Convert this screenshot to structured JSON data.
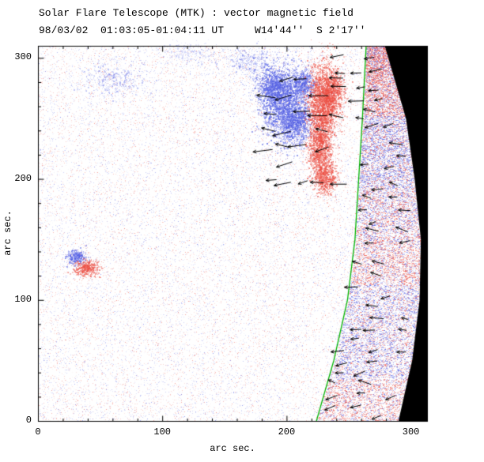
{
  "title": {
    "line1": "Solar Flare Telescope (MTK) : vector magnetic field",
    "line2": "98/03/02  01:03:05-01:04:11 UT     W14'44''  S 2'17''"
  },
  "chart_data": {
    "type": "heatmap",
    "title": "Solar Flare Telescope (MTK) : vector magnetic field",
    "subtitle": "98/03/02  01:03:05-01:04:11 UT     W14'44''  S 2'17''",
    "xlabel": "arc sec.",
    "ylabel": "arc sec.",
    "xlim": [
      0,
      313
    ],
    "ylim": [
      0,
      310
    ],
    "xticks": [
      0,
      100,
      200,
      300
    ],
    "yticks": [
      0,
      100,
      200,
      300
    ],
    "minor_tick_step": 20,
    "seed": 1234567,
    "colors": {
      "background": "#ffffff",
      "axes": "#000000",
      "off_limb": "#000000",
      "limb_line": "#00b400",
      "arrow": "#000000",
      "positive_rgb": [
        236,
        78,
        66
      ],
      "negative_rgb": [
        84,
        96,
        228
      ]
    },
    "noise": {
      "count": 26000,
      "strong_count": 3000,
      "band_extra": 9000
    },
    "features": {
      "limb_line_points": [
        [
          0,
          224
        ],
        [
          50,
          238
        ],
        [
          100,
          249
        ],
        [
          150,
          255
        ],
        [
          200,
          258
        ],
        [
          250,
          261
        ],
        [
          310,
          264
        ]
      ],
      "off_limb_edge_points": [
        [
          0,
          290
        ],
        [
          50,
          301
        ],
        [
          100,
          307
        ],
        [
          150,
          308
        ],
        [
          200,
          303
        ],
        [
          250,
          296
        ],
        [
          310,
          279
        ]
      ],
      "blobs": [
        {
          "cx": 198,
          "cy": 263,
          "sx": 9,
          "sy": 15,
          "n": 2800,
          "polarity": "neg"
        },
        {
          "cx": 208,
          "cy": 246,
          "sx": 6,
          "sy": 8,
          "n": 1100,
          "polarity": "neg"
        },
        {
          "cx": 188,
          "cy": 277,
          "sx": 6,
          "sy": 7,
          "n": 900,
          "polarity": "neg"
        },
        {
          "cx": 213,
          "cy": 279,
          "sx": 5,
          "sy": 6,
          "n": 600,
          "polarity": "neg"
        },
        {
          "cx": 229,
          "cy": 263,
          "sx": 6,
          "sy": 16,
          "n": 2800,
          "polarity": "pos"
        },
        {
          "cx": 227,
          "cy": 227,
          "sx": 5,
          "sy": 12,
          "n": 1500,
          "polarity": "pos"
        },
        {
          "cx": 231,
          "cy": 201,
          "sx": 4.5,
          "sy": 7,
          "n": 800,
          "polarity": "pos"
        },
        {
          "cx": 237,
          "cy": 273,
          "sx": 5,
          "sy": 9,
          "n": 800,
          "polarity": "pos"
        },
        {
          "cx": 31,
          "cy": 135,
          "sx": 4,
          "sy": 3,
          "n": 420,
          "polarity": "neg"
        },
        {
          "cx": 39,
          "cy": 126,
          "sx": 5,
          "sy": 3.5,
          "n": 560,
          "polarity": "pos"
        },
        {
          "cx": 62,
          "cy": 282,
          "sx": 12,
          "sy": 7,
          "n": 420,
          "polarity": "neg",
          "alpha": 0.3
        },
        {
          "cx": 170,
          "cy": 297,
          "sx": 9,
          "sy": 6,
          "n": 380,
          "polarity": "neg",
          "alpha": 0.3
        },
        {
          "cx": 120,
          "cy": 304,
          "sx": 14,
          "sy": 5,
          "n": 260,
          "polarity": "neg",
          "alpha": 0.22
        }
      ],
      "band_segments": [
        {
          "y0": 252,
          "y1": 310,
          "polarity": "pos"
        },
        {
          "y0": 192,
          "y1": 252,
          "polarity": "neg"
        },
        {
          "y0": 148,
          "y1": 192,
          "polarity": "mixed"
        },
        {
          "y0": 112,
          "y1": 148,
          "polarity": "pos"
        },
        {
          "y0": 34,
          "y1": 112,
          "polarity": "neg"
        },
        {
          "y0": 0,
          "y1": 34,
          "polarity": "pos"
        }
      ]
    },
    "vectors": {
      "fields": [
        {
          "name": "active-region",
          "band": false,
          "x0": 190,
          "x1": 246,
          "y0": 198,
          "y1": 290,
          "spacing": 14,
          "angle": 180,
          "angle_jitter": 20,
          "len_min": 11,
          "len_max": 26,
          "skip": 0.25
        },
        {
          "name": "ar-limb-gap",
          "band": false,
          "x0": 248,
          "x1": 262,
          "y0": 250,
          "y1": 304,
          "spacing": 13,
          "angle": 180,
          "angle_jitter": 15,
          "len_min": 10,
          "len_max": 20,
          "skip": 0.2
        },
        {
          "name": "limb-band",
          "band": true,
          "y0": 4,
          "y1": 306,
          "spacing": 9,
          "angle": 180,
          "angle_jitter": 25,
          "len_min": 9,
          "len_max": 18,
          "skip": 0.25
        }
      ]
    }
  }
}
